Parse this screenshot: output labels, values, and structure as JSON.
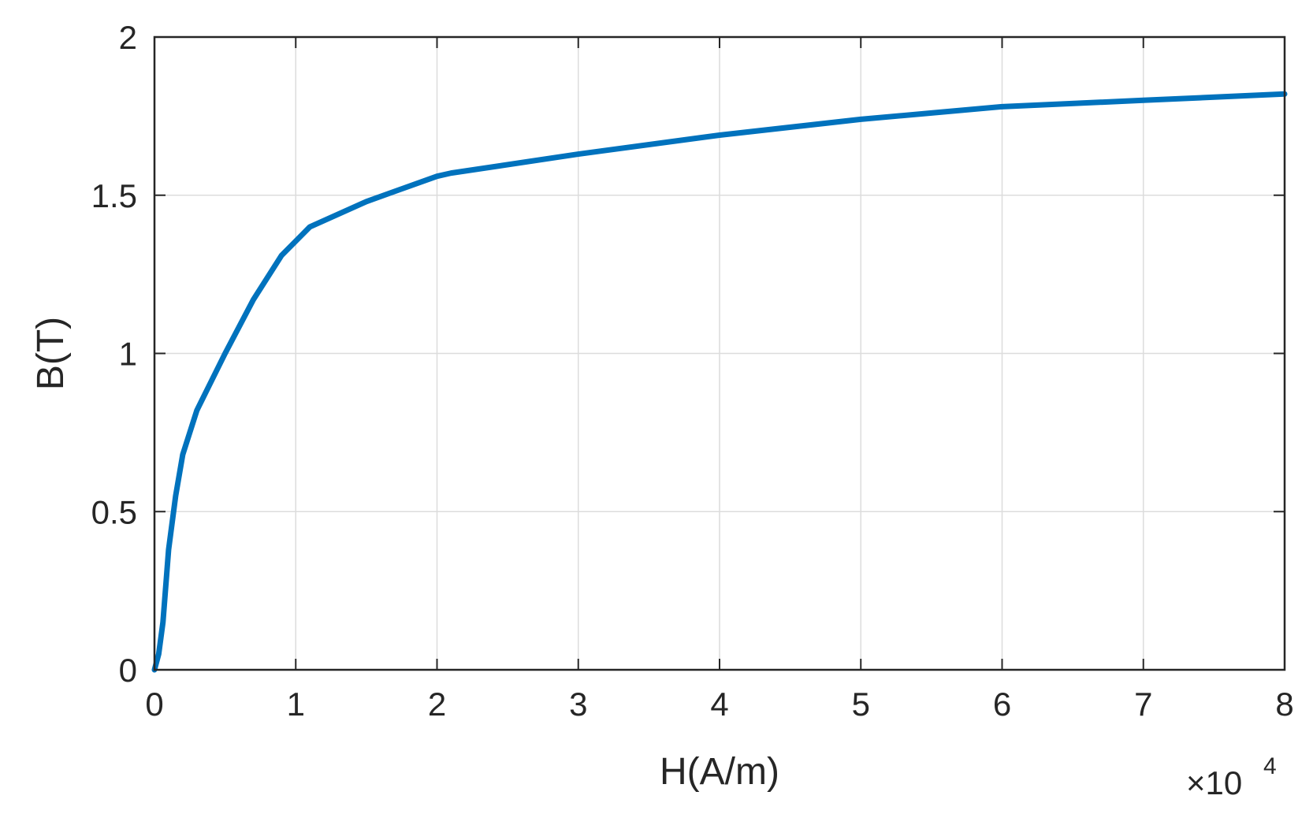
{
  "chart_data": {
    "type": "line",
    "xlabel": "H(A/m)",
    "ylabel": "B(T)",
    "x_exponent_prefix": "×10",
    "x_exponent_power": "4",
    "xlim": [
      0,
      8
    ],
    "ylim": [
      0,
      2
    ],
    "xticks": [
      "0",
      "1",
      "2",
      "3",
      "4",
      "5",
      "6",
      "7",
      "8"
    ],
    "yticks": [
      "0",
      "0.5",
      "1",
      "1.5",
      "2"
    ],
    "grid": true,
    "series_color": "#0072BD",
    "series": [
      {
        "x": [
          0,
          0.03,
          0.06,
          0.1,
          0.15,
          0.2,
          0.3,
          0.4,
          0.5,
          0.7,
          0.9,
          1.1,
          1.5,
          2.0,
          2.1,
          3.0,
          4.0,
          5.0,
          5.5,
          6.0,
          7.0,
          8.0
        ],
        "y": [
          0,
          0.05,
          0.15,
          0.38,
          0.55,
          0.68,
          0.82,
          0.91,
          1.0,
          1.17,
          1.31,
          1.4,
          1.48,
          1.56,
          1.57,
          1.63,
          1.69,
          1.74,
          1.76,
          1.78,
          1.8,
          1.82
        ]
      }
    ]
  }
}
